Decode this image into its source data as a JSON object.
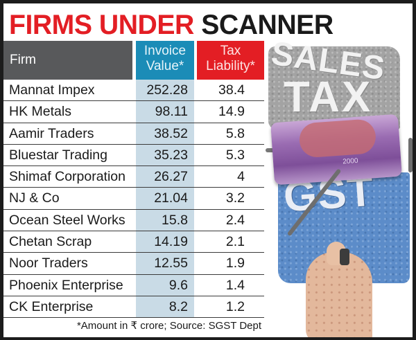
{
  "title": {
    "part1": "FIRMS UNDER",
    "part2": "SCANNER"
  },
  "colors": {
    "title_red": "#e31e24",
    "firm_header": "#58595b",
    "invoice_header": "#1b8cb7",
    "tax_header": "#e31e24",
    "invoice_column_bg": "#c9dbe6"
  },
  "table": {
    "headers": {
      "firm": "Firm",
      "invoice_line1": "Invoice",
      "invoice_line2": "Value*",
      "tax_line1": "Tax",
      "tax_line2": "Liability*"
    },
    "rows": [
      {
        "firm": "Mannat Impex",
        "invoice": "252.28",
        "tax": "38.4"
      },
      {
        "firm": "HK Metals",
        "invoice": "98.11",
        "tax": "14.9"
      },
      {
        "firm": "Aamir Traders",
        "invoice": "38.52",
        "tax": "5.8"
      },
      {
        "firm": "Bluestar Trading",
        "invoice": "35.23",
        "tax": "5.3"
      },
      {
        "firm": "Shimaf Corporation",
        "invoice": "26.27",
        "tax": "4"
      },
      {
        "firm": "NJ & Co",
        "invoice": "21.04",
        "tax": "3.2"
      },
      {
        "firm": "Ocean Steel Works",
        "invoice": "15.8",
        "tax": "2.4"
      },
      {
        "firm": "Chetan Scrap",
        "invoice": "14.19",
        "tax": "2.1"
      },
      {
        "firm": "Noor Traders",
        "invoice": "12.55",
        "tax": "1.9"
      },
      {
        "firm": "Phoenix Enterprise",
        "invoice": "9.6",
        "tax": "1.4"
      },
      {
        "firm": "CK Enterprise",
        "invoice": "8.2",
        "tax": "1.2"
      }
    ],
    "footnote": "*Amount in ₹ crore; Source: SGST Dept"
  },
  "illustration": {
    "word1": "SALES",
    "word2": "TAX",
    "word3": "GST",
    "note_serial": "2000"
  },
  "chart_data": {
    "type": "table",
    "title": "FIRMS UNDER SCANNER",
    "columns": [
      "Firm",
      "Invoice Value*",
      "Tax Liability*"
    ],
    "categories": [
      "Mannat Impex",
      "HK Metals",
      "Aamir Traders",
      "Bluestar Trading",
      "Shimaf Corporation",
      "NJ & Co",
      "Ocean Steel Works",
      "Chetan Scrap",
      "Noor Traders",
      "Phoenix Enterprise",
      "CK Enterprise"
    ],
    "series": [
      {
        "name": "Invoice Value*",
        "values": [
          252.28,
          98.11,
          38.52,
          35.23,
          26.27,
          21.04,
          15.8,
          14.19,
          12.55,
          9.6,
          8.2
        ]
      },
      {
        "name": "Tax Liability*",
        "values": [
          38.4,
          14.9,
          5.8,
          5.3,
          4,
          3.2,
          2.4,
          2.1,
          1.9,
          1.4,
          1.2
        ]
      }
    ],
    "unit_note": "*Amount in ₹ crore; Source: SGST Dept"
  }
}
